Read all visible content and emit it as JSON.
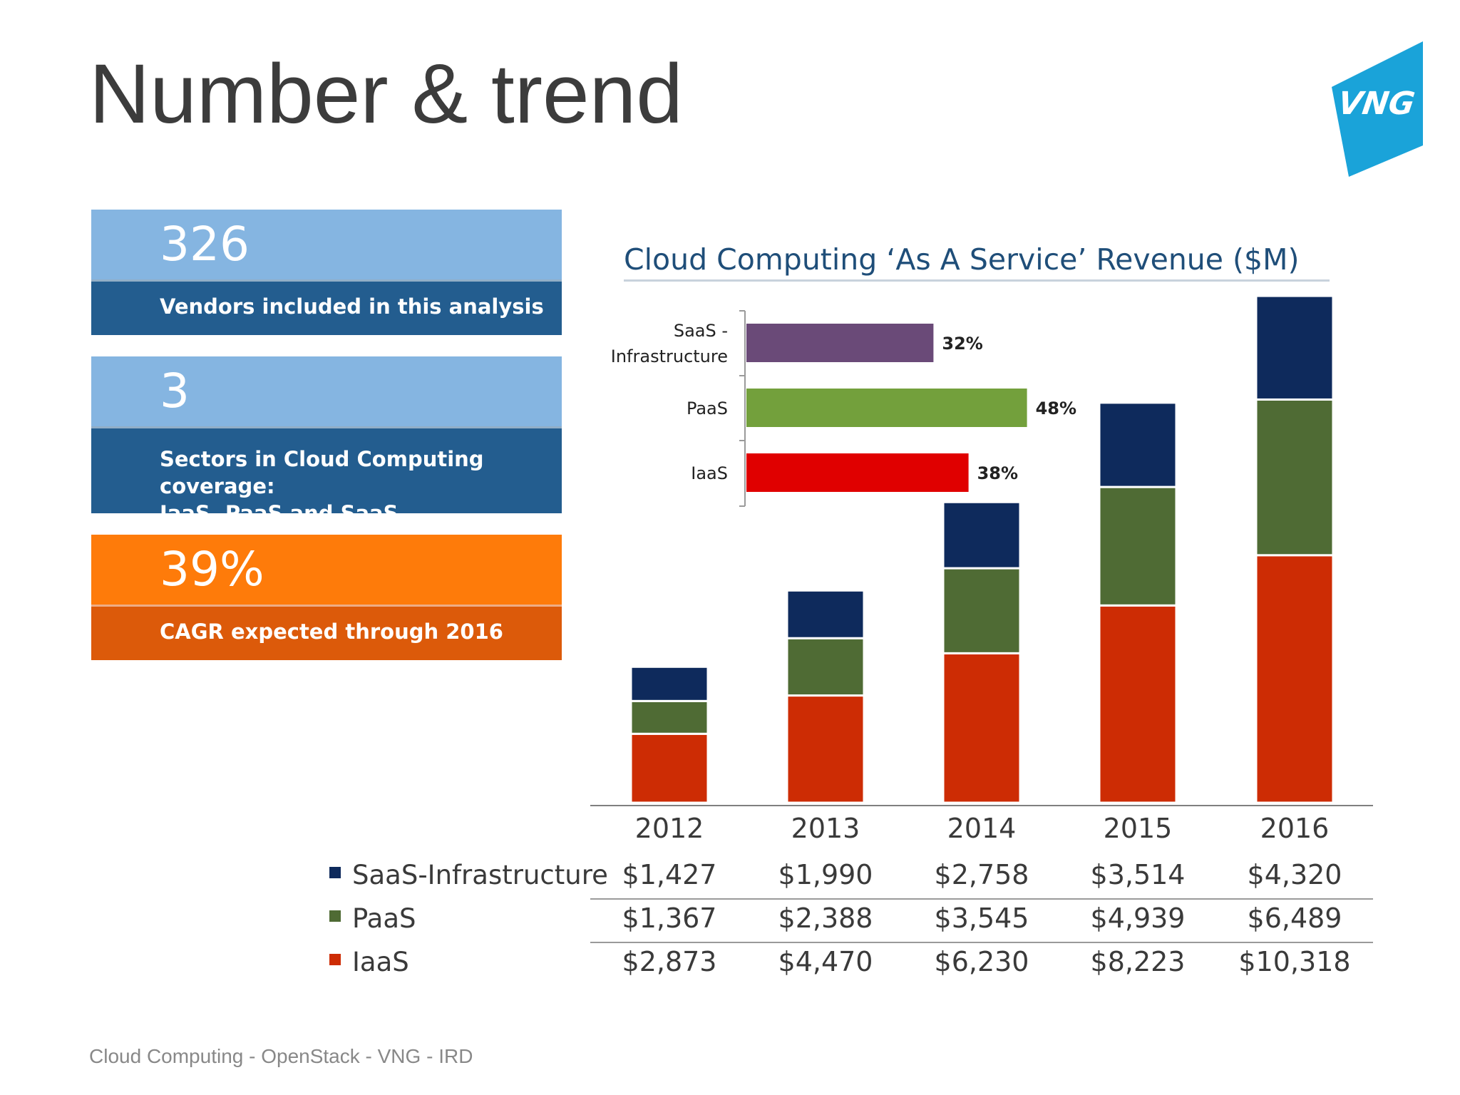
{
  "slide": {
    "title": "Number & trend",
    "footer": "Cloud Computing - OpenStack - VNG - IRD",
    "logo_text": "VNG"
  },
  "stats": [
    {
      "value": "326",
      "caption_lines": [
        "Vendors included in this analysis"
      ]
    },
    {
      "value": "3",
      "caption_lines": [
        "Sectors in Cloud Computing coverage:",
        "IaaS, PaaS and SaaS (Infrastructure)"
      ]
    },
    {
      "value": "39%",
      "caption_lines": [
        "CAGR expected through 2016"
      ]
    }
  ],
  "colors": {
    "saas": "#0e2a5c",
    "paas": "#4f6b34",
    "iaas": "#cd2c04",
    "inset_saas": "#6a4a78",
    "inset_paas": "#73a03c",
    "inset_iaas": "#e00000",
    "stat_light_blue": "#85b5e1",
    "stat_dark_blue": "#235d8f",
    "stat_orange": "#fe7b0a",
    "stat_dark_orange": "#dc5a0a",
    "logo": "#1aa3d9"
  },
  "chart_data": [
    {
      "type": "bar",
      "stacked": true,
      "title": "Cloud Computing ‘As A Service’ Revenue ($M)",
      "categories": [
        "2012",
        "2013",
        "2014",
        "2015",
        "2016"
      ],
      "series": [
        {
          "name": "SaaS-Infrastructure",
          "values": [
            1427,
            1990,
            2758,
            3514,
            4320
          ],
          "labels": [
            "$1,427",
            "$1,990",
            "$2,758",
            "$3,514",
            "$4,320"
          ]
        },
        {
          "name": "PaaS",
          "values": [
            1367,
            2388,
            3545,
            4939,
            6489
          ],
          "labels": [
            "$1,367",
            "$2,388",
            "$3,545",
            "$4,939",
            "$6,489"
          ]
        },
        {
          "name": "IaaS",
          "values": [
            2873,
            4470,
            6230,
            8223,
            10318
          ],
          "labels": [
            "$2,873",
            "$4,470",
            "$6,230",
            "$8,223",
            "$10,318"
          ]
        }
      ],
      "data_table": true,
      "grid": false
    },
    {
      "type": "bar",
      "orientation": "horizontal",
      "categories": [
        "SaaS - Infrastructure",
        "PaaS",
        "IaaS"
      ],
      "category_lines": [
        [
          "SaaS -",
          "Infrastructure"
        ],
        [
          "PaaS"
        ],
        [
          "IaaS"
        ]
      ],
      "values": [
        32,
        48,
        38
      ],
      "labels": [
        "32%",
        "48%",
        "38%"
      ]
    }
  ]
}
